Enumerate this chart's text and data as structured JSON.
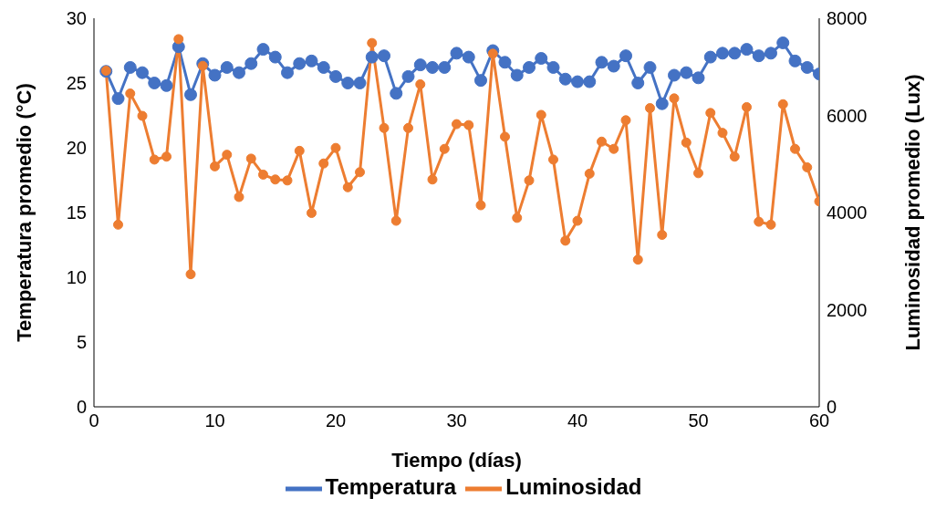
{
  "chart_data": {
    "type": "line",
    "xlabel": "Tiempo (días)",
    "ylabel": "Temperatura promedio (°C)",
    "y2label": "Luminosidad promedio (Lux)",
    "x": [
      1,
      2,
      3,
      4,
      5,
      6,
      7,
      8,
      9,
      10,
      11,
      12,
      13,
      14,
      15,
      16,
      17,
      18,
      19,
      20,
      21,
      22,
      23,
      24,
      25,
      26,
      27,
      28,
      29,
      30,
      31,
      32,
      33,
      34,
      35,
      36,
      37,
      38,
      39,
      40,
      41,
      42,
      43,
      44,
      45,
      46,
      47,
      48,
      49,
      50,
      51,
      52,
      53,
      54,
      55,
      56,
      57,
      58,
      59,
      60
    ],
    "xlim": [
      0,
      60
    ],
    "xticks": [
      0,
      10,
      20,
      30,
      40,
      50,
      60
    ],
    "ylim": [
      0,
      30
    ],
    "yticks": [
      0,
      5,
      10,
      15,
      20,
      25,
      30
    ],
    "y2lim": [
      0,
      8000
    ],
    "y2ticks": [
      0,
      2000,
      4000,
      6000,
      8000
    ],
    "grid": false,
    "legend": "bottom",
    "marker": "circle",
    "line_style": "solid",
    "series": [
      {
        "name": "Temperatura",
        "color": "#4472c4",
        "values": [
          25.9,
          23.8,
          26.2,
          25.8,
          25.0,
          24.8,
          27.8,
          24.1,
          26.5,
          25.6,
          26.2,
          25.8,
          26.5,
          27.6,
          27.0,
          25.8,
          26.5,
          26.7,
          26.2,
          25.5,
          25.0,
          25.0,
          27.0,
          27.1,
          24.2,
          25.5,
          26.4,
          26.2,
          26.2,
          27.3,
          27.0,
          25.2,
          27.5,
          26.6,
          25.6,
          26.2,
          26.9,
          26.2,
          25.3,
          25.1,
          25.1,
          26.6,
          26.3,
          27.1,
          25.0,
          26.2,
          23.4,
          25.6,
          25.8,
          25.4,
          27.0,
          27.3,
          27.3,
          27.6,
          27.1,
          27.3,
          28.1,
          26.7,
          26.2,
          25.7
        ]
      },
      {
        "name": "Luminosidad",
        "color": "#ed7d31",
        "axis": "y2",
        "values": [
          6920,
          3750,
          6450,
          5990,
          5090,
          5150,
          7570,
          2730,
          7020,
          4950,
          5190,
          4320,
          5110,
          4780,
          4680,
          4660,
          5270,
          3990,
          5010,
          5330,
          4520,
          4830,
          7490,
          5740,
          3830,
          5740,
          6640,
          4680,
          5310,
          5820,
          5800,
          4150,
          7270,
          5560,
          3890,
          4660,
          6010,
          5090,
          3420,
          3830,
          4800,
          5460,
          5310,
          5900,
          3030,
          6150,
          3540,
          6350,
          5440,
          4810,
          6050,
          5640,
          5150,
          6170,
          3810,
          3750,
          6230,
          5310,
          4930,
          4230
        ]
      }
    ]
  }
}
